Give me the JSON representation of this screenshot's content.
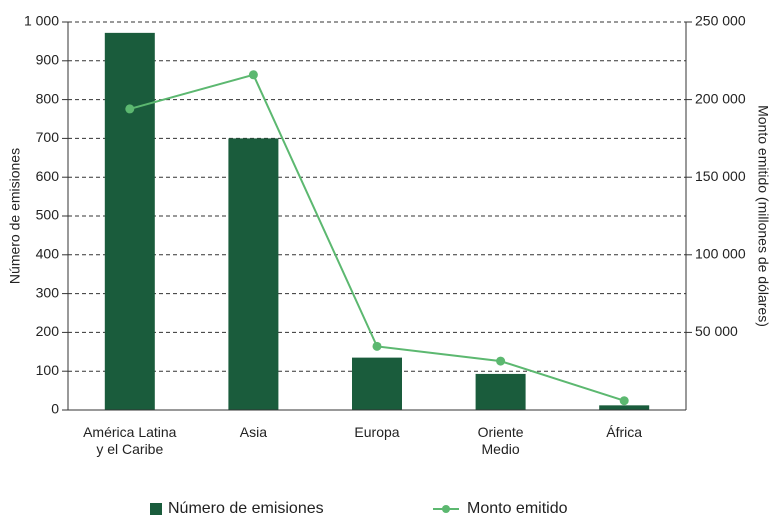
{
  "chart_data": {
    "type": "combo",
    "categories": [
      "América Latina\ny el Caribe",
      "Asia",
      "Europa",
      "Oriente\nMedio",
      "África"
    ],
    "series": [
      {
        "name": "Número de emisiones",
        "color": "#1a5c3c",
        "type": "bar",
        "values": [
          972,
          700,
          135,
          93,
          12
        ]
      },
      {
        "name": "Monto emitido",
        "color": "#5cb870",
        "type": "line",
        "axis": "y2",
        "values": [
          194000,
          216000,
          41000,
          31500,
          6000
        ]
      }
    ],
    "ylabel": "Número de emisiones",
    "y2label": "Monto emitido (millones de dólares)",
    "ylim": [
      0,
      1000
    ],
    "yticks": [
      0,
      100,
      200,
      300,
      400,
      500,
      600,
      700,
      800,
      900,
      {
        "value": 1000,
        "label": "1 000"
      }
    ],
    "y2lim": [
      0,
      250000
    ],
    "y2ticks": [
      {
        "value": 50000,
        "label": "50 000"
      },
      {
        "value": 100000,
        "label": "100 000"
      },
      {
        "value": 150000,
        "label": "150 000"
      },
      {
        "value": 200000,
        "label": "200 000"
      },
      {
        "value": 250000,
        "label": "250 000"
      }
    ],
    "grid": true,
    "legend": "bottom"
  }
}
